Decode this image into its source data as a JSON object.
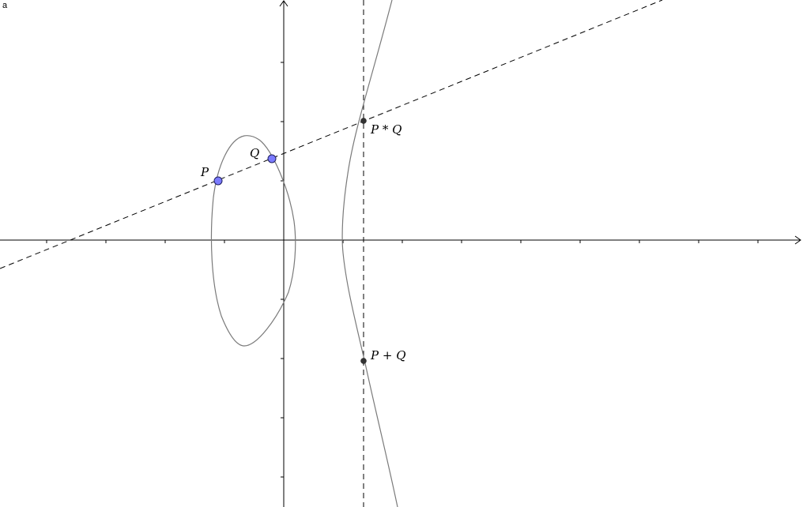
{
  "corner_label": "a",
  "labels": {
    "P": "P",
    "Q": "Q",
    "PstarQ": "P * Q",
    "PplusQ": "P + Q"
  },
  "colors": {
    "curve": "#7a7a7a",
    "axes": "#000000",
    "dashed": "#000000",
    "point_fill": "#7b7bff",
    "point_stroke": "#202060",
    "intersection_point": "#333333"
  }
}
